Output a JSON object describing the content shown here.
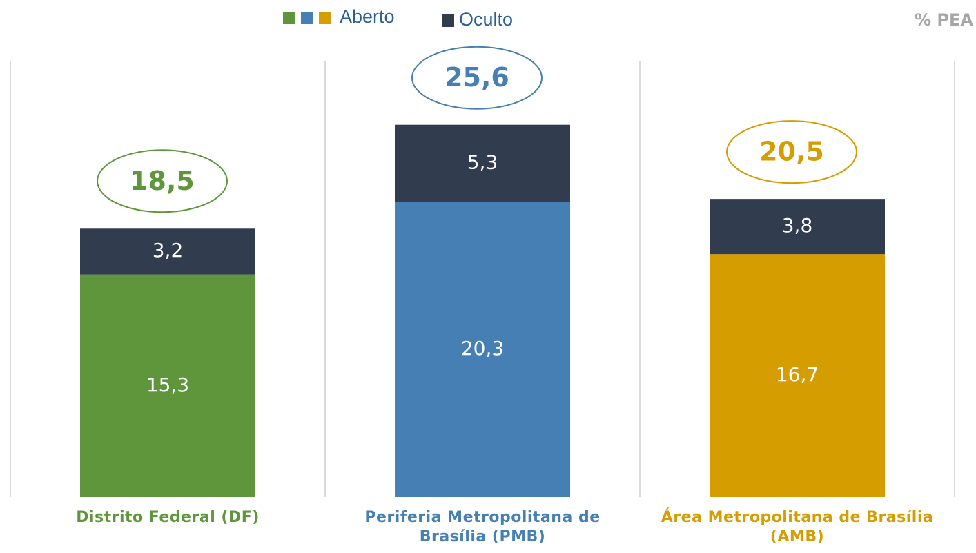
{
  "chart_data": {
    "type": "stacked_bar",
    "unit_label": "% PEA",
    "categories": [
      "Distrito Federal (DF)",
      "Periferia Metropolitana de Brasília (PMB)",
      "Área Metropolitana de Brasília (AMB)"
    ],
    "series": [
      {
        "name": "Aberto",
        "colors": [
          "#5f963b",
          "#467fb3",
          "#d59d00"
        ],
        "values": [
          15.3,
          20.3,
          16.7
        ],
        "value_labels": [
          "15,3",
          "20,3",
          "16,7"
        ]
      },
      {
        "name": "Oculto",
        "color": "#323c4f",
        "values": [
          3.2,
          5.3,
          3.8
        ],
        "value_labels": [
          "3,2",
          "5,3",
          "3,8"
        ]
      }
    ],
    "totals": [
      18.5,
      25.6,
      20.5
    ],
    "total_labels": [
      "18,5",
      "25,6",
      "20,5"
    ],
    "ylim": [
      0,
      30
    ]
  }
}
